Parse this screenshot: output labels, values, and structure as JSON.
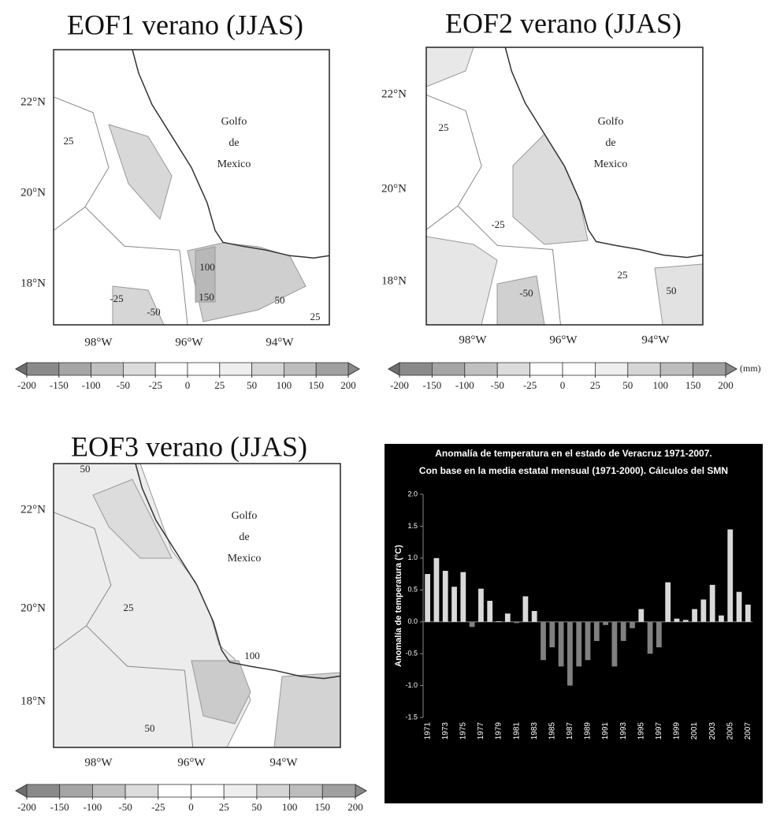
{
  "maps": [
    {
      "title": "EOF1 verano (JJAS)",
      "lat_labels": [
        "22°N",
        "20°N",
        "18°N"
      ],
      "lon_labels": [
        "98°W",
        "96°W",
        "94°W"
      ],
      "sea_label": [
        "Golfo",
        "de",
        "Mexico"
      ],
      "contour_labels": [
        25,
        -25,
        100,
        150,
        50,
        -50,
        25
      ],
      "colorbar_ticks": [
        -200,
        -150,
        -100,
        -50,
        -25,
        0,
        25,
        50,
        100,
        150,
        200
      ]
    },
    {
      "title": "EOF2 verano (JJAS)",
      "lat_labels": [
        "22°N",
        "20°N",
        "18°N"
      ],
      "lon_labels": [
        "98°W",
        "96°W",
        "94°W"
      ],
      "sea_label": [
        "Golfo",
        "de",
        "Mexico"
      ],
      "contour_labels": [
        25,
        -25,
        25,
        -50,
        50
      ],
      "colorbar_ticks": [
        -200,
        -150,
        -100,
        -50,
        -25,
        0,
        25,
        50,
        100,
        150,
        200
      ],
      "unit": "(mm)"
    },
    {
      "title": "EOF3 verano (JJAS)",
      "lat_labels": [
        "22°N",
        "20°N",
        "18°N"
      ],
      "lon_labels": [
        "98°W",
        "96°W",
        "94°W"
      ],
      "sea_label": [
        "Golfo",
        "de",
        "Mexico"
      ],
      "contour_labels": [
        50,
        25,
        100,
        50
      ],
      "colorbar_ticks": [
        -200,
        -150,
        -100,
        -50,
        -25,
        0,
        25,
        50,
        100,
        150,
        200
      ]
    }
  ],
  "chart_data": {
    "type": "bar",
    "title": [
      "Anomalía de temperatura en el estado  de Veracruz 1971-2007.",
      "Con base en la media estatal mensual (1971-2000). Cálculos del SMN"
    ],
    "y_label": "Anomalía de temperatura (°C)",
    "categories": [
      "1971",
      null,
      "1973",
      null,
      "1975",
      null,
      "1977",
      null,
      "1979",
      null,
      "1981",
      null,
      "1983",
      null,
      "1985",
      null,
      "1987",
      null,
      "1989",
      null,
      "1991",
      null,
      "1993",
      null,
      "1995",
      null,
      "1997",
      null,
      "1999",
      null,
      "2001",
      null,
      "2003",
      null,
      "2005",
      null,
      "2007"
    ],
    "values": [
      0.75,
      1.0,
      0.8,
      0.55,
      0.78,
      -0.08,
      0.52,
      0.33,
      0.01,
      0.13,
      -0.02,
      0.4,
      0.17,
      -0.6,
      -0.4,
      -0.7,
      -1.0,
      -0.7,
      -0.6,
      -0.3,
      -0.05,
      -0.7,
      -0.3,
      -0.1,
      0.2,
      -0.5,
      -0.4,
      0.62,
      0.05,
      0.03,
      0.2,
      0.35,
      0.58,
      0.1,
      1.45,
      0.47,
      0.27
    ],
    "positive_color": "#d9d9d9",
    "negative_color": "#808080",
    "ylim": [
      -1.5,
      2.0
    ],
    "yticks": [
      {
        "value": -1.5,
        "label": "-1.5"
      },
      {
        "value": -1.0,
        "label": "-1.0"
      },
      {
        "value": -0.5,
        "label": "-0.5"
      },
      {
        "value": 0,
        "label": "0.0"
      },
      {
        "value": 0.5,
        "label": "0.5"
      },
      {
        "value": 1.0,
        "label": "1.0"
      },
      {
        "value": 1.5,
        "label": "1.5"
      },
      {
        "value": 2.0,
        "label": "2.0"
      }
    ]
  }
}
